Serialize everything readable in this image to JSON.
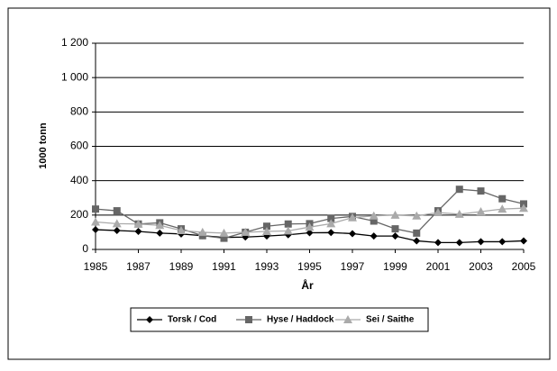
{
  "chart_data": {
    "type": "line",
    "x": [
      1985,
      1986,
      1987,
      1988,
      1989,
      1990,
      1991,
      1992,
      1993,
      1994,
      1995,
      1996,
      1997,
      1998,
      1999,
      2000,
      2001,
      2002,
      2003,
      2004,
      2005
    ],
    "series": [
      {
        "name": "Torsk / Cod",
        "color": "#000000",
        "marker": "diamond",
        "values": [
          115,
          110,
          105,
          95,
          90,
          80,
          70,
          72,
          78,
          85,
          97,
          98,
          92,
          78,
          78,
          50,
          40,
          40,
          45,
          45,
          50
        ]
      },
      {
        "name": "Hyse / Haddock",
        "color": "#666666",
        "marker": "square",
        "values": [
          235,
          225,
          148,
          155,
          120,
          80,
          65,
          100,
          135,
          148,
          150,
          180,
          192,
          165,
          120,
          95,
          225,
          350,
          340,
          295,
          265
        ]
      },
      {
        "name": "Sei / Saithe",
        "color": "#aaaaaa",
        "marker": "triangle",
        "values": [
          160,
          150,
          148,
          140,
          110,
          100,
          95,
          100,
          105,
          108,
          130,
          150,
          185,
          195,
          200,
          195,
          215,
          205,
          220,
          235,
          240
        ]
      }
    ],
    "xlabel": "År",
    "ylabel": "1000 tonn",
    "xlim": [
      1985,
      2005
    ],
    "xticks": [
      1985,
      1987,
      1989,
      1991,
      1993,
      1995,
      1997,
      1999,
      2001,
      2003,
      2005
    ],
    "ylim": [
      0,
      1200
    ],
    "yticks": [
      0,
      200,
      400,
      600,
      800,
      {
        "value": 1000,
        "label": "1 000"
      },
      {
        "value": 1200,
        "label": "1 200"
      }
    ],
    "grid": true,
    "legend": "bottom"
  }
}
